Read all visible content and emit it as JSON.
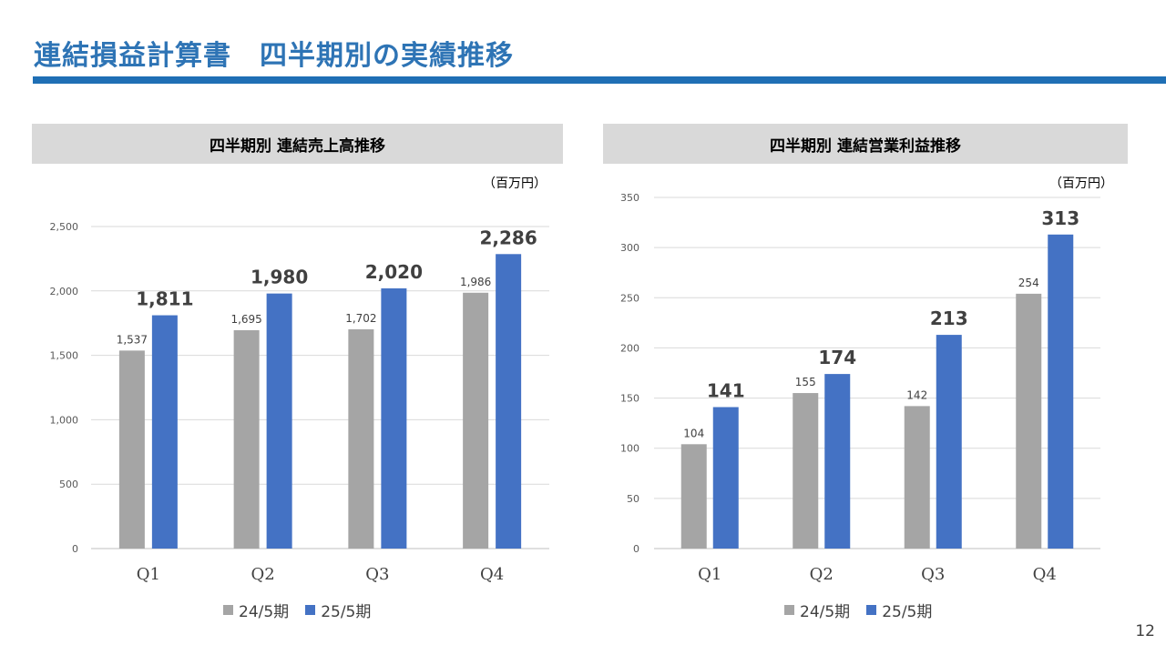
{
  "slide": {
    "title": "連結損益計算書　四半期別の実績推移",
    "page_number": "12"
  },
  "colors": {
    "title": "#2E74B5",
    "rule": "#1F6FB5",
    "prev_series": "#A5A5A5",
    "cur_series": "#4472C4",
    "header_bg": "#D9D9D9"
  },
  "chart_data": [
    {
      "type": "bar",
      "title": "四半期別 連結売上高推移",
      "unit": "（百万円）",
      "categories": [
        "Q1",
        "Q2",
        "Q3",
        "Q4"
      ],
      "series": [
        {
          "name": "24/5期",
          "values": [
            1537,
            1695,
            1702,
            1986
          ]
        },
        {
          "name": "25/5期",
          "values": [
            1811,
            1980,
            2020,
            2286
          ]
        }
      ],
      "data_labels": {
        "24/5期": [
          "1,537",
          "1,695",
          "1,702",
          "1,986"
        ],
        "25/5期": [
          "1,811",
          "1,980",
          "2,020",
          "2,286"
        ]
      },
      "ylim": [
        0,
        2500
      ],
      "yticks": [
        0,
        500,
        1000,
        1500,
        2000,
        2500
      ],
      "ytick_labels": [
        "0",
        "500",
        "1,000",
        "1,500",
        "2,000",
        "2,500"
      ],
      "grid": true,
      "legend": "bottom"
    },
    {
      "type": "bar",
      "title": "四半期別 連結営業利益推移",
      "unit": "（百万円）",
      "categories": [
        "Q1",
        "Q2",
        "Q3",
        "Q4"
      ],
      "series": [
        {
          "name": "24/5期",
          "values": [
            104,
            155,
            142,
            254
          ]
        },
        {
          "name": "25/5期",
          "values": [
            141,
            174,
            213,
            313
          ]
        }
      ],
      "data_labels": {
        "24/5期": [
          "104",
          "155",
          "142",
          "254"
        ],
        "25/5期": [
          "141",
          "174",
          "213",
          "313"
        ]
      },
      "ylim": [
        0,
        350
      ],
      "yticks": [
        0,
        50,
        100,
        150,
        200,
        250,
        300,
        350
      ],
      "ytick_labels": [
        "0",
        "50",
        "100",
        "150",
        "200",
        "250",
        "300",
        "350"
      ],
      "grid": true,
      "legend": "bottom"
    }
  ]
}
